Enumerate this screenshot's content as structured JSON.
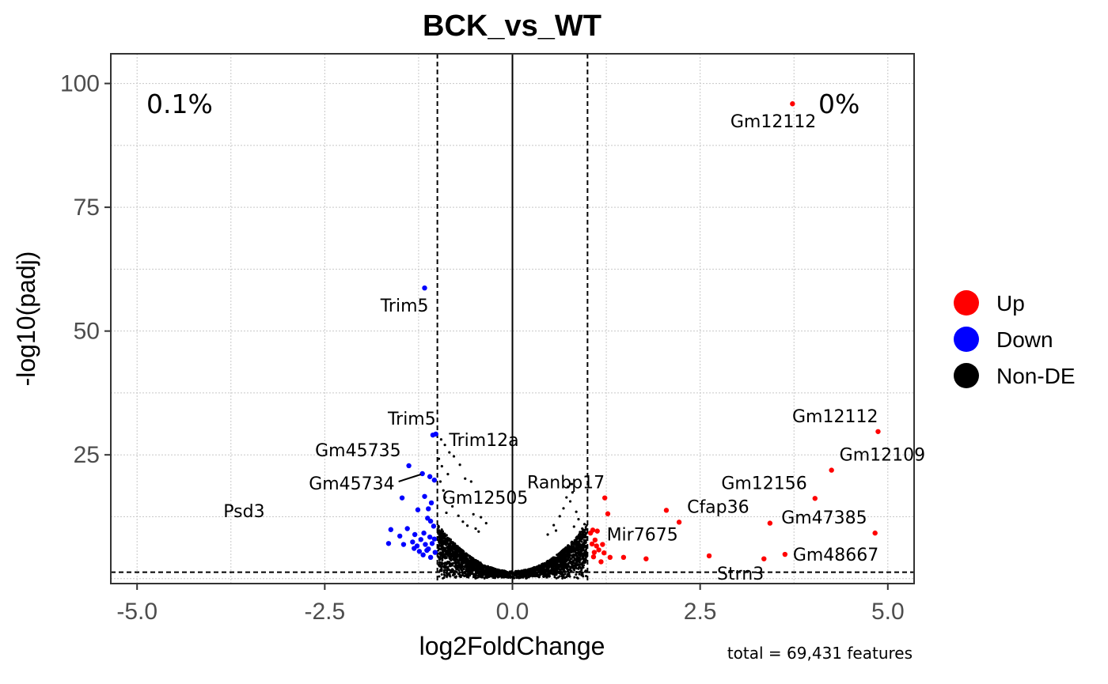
{
  "chart_data": {
    "type": "scatter",
    "title": "BCK_vs_WT",
    "xlabel": "log2FoldChange",
    "ylabel": "-log10(padj)",
    "xlim": [
      -5.35,
      5.35
    ],
    "ylim": [
      -1,
      106
    ],
    "x_ticks": [
      -5.0,
      -2.5,
      0.0,
      2.5,
      5.0
    ],
    "x_tick_labels": [
      "-5.0",
      "-2.5",
      "0.0",
      "2.5",
      "5.0"
    ],
    "y_ticks": [
      25,
      50,
      75,
      100
    ],
    "y_tick_labels": [
      "25",
      "50",
      "75",
      "100"
    ],
    "grid": true,
    "fc_threshold": 1,
    "padj_threshold_line": 1.3,
    "legend": {
      "placement": "right",
      "entries": [
        {
          "name": "Up",
          "color": "#FF0000"
        },
        {
          "name": "Down",
          "color": "#0000FF"
        },
        {
          "name": "Non-DE",
          "color": "#000000"
        }
      ]
    },
    "percent_down": "0.1%",
    "percent_up": "0%",
    "caption": "total = 69,431 features",
    "series": [
      {
        "name": "Up",
        "color": "#FF0000",
        "points": [
          [
            3.73,
            95.9
          ],
          [
            4.87,
            29.7
          ],
          [
            4.25,
            21.9
          ],
          [
            4.03,
            16.2
          ],
          [
            3.43,
            11.2
          ],
          [
            4.83,
            9.2
          ],
          [
            2.05,
            13.8
          ],
          [
            2.22,
            11.4
          ],
          [
            1.23,
            16.3
          ],
          [
            1.27,
            13.1
          ],
          [
            3.63,
            4.9
          ],
          [
            3.35,
            4.0
          ],
          [
            2.62,
            4.6
          ],
          [
            1.78,
            4.0
          ],
          [
            1.48,
            4.3
          ],
          [
            1.07,
            9.8
          ],
          [
            1.1,
            7.8
          ],
          [
            1.12,
            6.6
          ],
          [
            1.15,
            5.8
          ],
          [
            1.08,
            4.4
          ],
          [
            1.18,
            3.4
          ],
          [
            1.22,
            5.2
          ],
          [
            1.3,
            4.3
          ],
          [
            1.04,
            9.2
          ],
          [
            1.06,
            7.0
          ],
          [
            1.13,
            9.6
          ],
          [
            1.2,
            6.9
          ],
          [
            1.09,
            5.3
          ]
        ]
      },
      {
        "name": "Down",
        "color": "#0000FF",
        "points": [
          [
            -1.17,
            58.7
          ],
          [
            -1.02,
            29.2
          ],
          [
            -1.06,
            29.0
          ],
          [
            -1.38,
            22.8
          ],
          [
            -1.2,
            21.2
          ],
          [
            -1.1,
            20.6
          ],
          [
            -1.04,
            19.9
          ],
          [
            -1.47,
            16.3
          ],
          [
            -1.17,
            16.6
          ],
          [
            -1.08,
            15.3
          ],
          [
            -1.26,
            13.9
          ],
          [
            -1.12,
            14.1
          ],
          [
            -1.62,
            9.9
          ],
          [
            -1.4,
            10.1
          ],
          [
            -1.13,
            12.2
          ],
          [
            -1.09,
            11.6
          ],
          [
            -1.05,
            10.6
          ],
          [
            -1.5,
            8.6
          ],
          [
            -1.3,
            8.9
          ],
          [
            -1.18,
            9.2
          ],
          [
            -1.1,
            8.4
          ],
          [
            -1.65,
            7.1
          ],
          [
            -1.45,
            6.9
          ],
          [
            -1.33,
            7.4
          ],
          [
            -1.27,
            6.6
          ],
          [
            -1.22,
            7.9
          ],
          [
            -1.16,
            6.9
          ],
          [
            -1.12,
            6.0
          ],
          [
            -1.07,
            7.1
          ],
          [
            -1.03,
            5.3
          ],
          [
            -1.31,
            6.1
          ],
          [
            -1.24,
            5.5
          ],
          [
            -1.19,
            4.8
          ],
          [
            -1.14,
            5.7
          ],
          [
            -1.04,
            8.0
          ],
          [
            -1.09,
            4.3
          ]
        ]
      },
      {
        "name": "Non-DE",
        "color": "#000000",
        "points": [
          [
            -0.95,
            28.1
          ],
          [
            -0.9,
            27.0
          ],
          [
            -0.84,
            25.5
          ],
          [
            -0.78,
            24.7
          ],
          [
            -0.94,
            22.7
          ],
          [
            -0.86,
            21.1
          ],
          [
            -0.7,
            23.0
          ],
          [
            -0.63,
            20.2
          ],
          [
            -0.55,
            19.6
          ],
          [
            -0.52,
            13.0
          ],
          [
            -0.42,
            12.4
          ],
          [
            -0.35,
            11.2
          ],
          [
            -0.9,
            16.4
          ],
          [
            -0.8,
            14.6
          ],
          [
            -0.72,
            12.7
          ],
          [
            0.79,
            19.1
          ],
          [
            0.74,
            18.5
          ],
          [
            0.8,
            17.4
          ],
          [
            0.72,
            16.4
          ],
          [
            0.77,
            15.6
          ],
          [
            0.68,
            14.2
          ],
          [
            0.85,
            13.5
          ],
          [
            0.63,
            12.6
          ],
          [
            0.88,
            12.0
          ],
          [
            0.55,
            10.8
          ],
          [
            0.82,
            10.5
          ],
          [
            0.58,
            9.7
          ],
          [
            0.9,
            9.4
          ],
          [
            0.47,
            8.9
          ],
          [
            0.95,
            8.8
          ],
          [
            -0.98,
            24.2
          ],
          [
            -0.96,
            19.6
          ],
          [
            -0.92,
            17.8
          ],
          [
            -0.88,
            13.3
          ],
          [
            -0.66,
            11.5
          ],
          [
            -0.6,
            10.7
          ],
          [
            -0.49,
            10.1
          ],
          [
            -0.45,
            9.5
          ],
          [
            0.96,
            11.0
          ],
          [
            0.93,
            10.1
          ]
        ]
      }
    ],
    "labels": [
      {
        "text": "Gm12112",
        "x": 3.73,
        "y": 95.9,
        "dx": 0,
        "dy": 1
      },
      {
        "text": "Trim5",
        "x": -1.17,
        "y": 58.7,
        "dx": 0,
        "dy": 1
      },
      {
        "text": "Trim5",
        "x": -1.02,
        "y": 29.2,
        "dx": 0,
        "dy": -1
      },
      {
        "text": "Trim12a",
        "x": -0.95,
        "y": 28.1,
        "dx": 1,
        "dy": 0
      },
      {
        "text": "Gm45735",
        "x": -1.38,
        "y": 22.8,
        "dx": -1,
        "dy": -1
      },
      {
        "text": "Gm45734",
        "x": -1.2,
        "y": 21.2,
        "dx": -1,
        "dy": 0
      },
      {
        "text": "Gm12505",
        "x": -1.04,
        "y": 19.9,
        "dx": 1,
        "dy": 1
      },
      {
        "text": "Psd3",
        "x": -3.85,
        "y": 10.5,
        "dx": 0,
        "dy": -1
      },
      {
        "text": "Ranbp17",
        "x": 1.23,
        "y": 16.3,
        "dx": 0,
        "dy": -1
      },
      {
        "text": "Gm12112",
        "x": 4.87,
        "y": 29.7,
        "dx": 0,
        "dy": -1
      },
      {
        "text": "Gm12109",
        "x": 4.25,
        "y": 21.9,
        "dx": 1,
        "dy": -1
      },
      {
        "text": "Gm12156",
        "x": 4.03,
        "y": 16.2,
        "dx": -1,
        "dy": -1
      },
      {
        "text": "Cfap36",
        "x": 2.22,
        "y": 11.4,
        "dx": 1,
        "dy": -1
      },
      {
        "text": "Gm47385",
        "x": 4.83,
        "y": 9.2,
        "dx": -1,
        "dy": -1
      },
      {
        "text": "Mir7675",
        "x": 1.15,
        "y": 5.8,
        "dx": 1,
        "dy": -1
      },
      {
        "text": "Gm48667",
        "x": 3.63,
        "y": 4.9,
        "dx": 1,
        "dy": 0
      },
      {
        "text": "Strn3",
        "x": 2.62,
        "y": 4.6,
        "dx": 1,
        "dy": 1
      }
    ]
  }
}
